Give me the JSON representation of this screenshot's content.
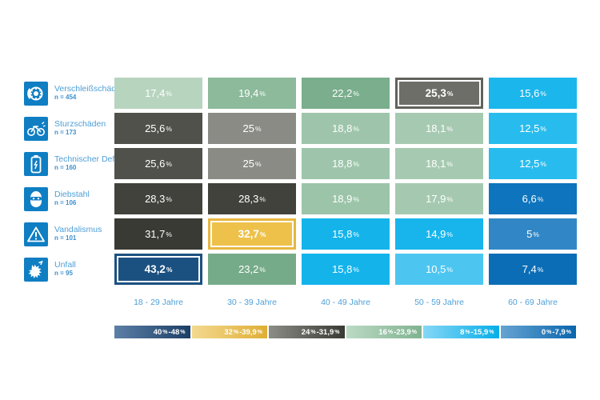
{
  "chart_data": {
    "type": "heatmap",
    "unit": "%",
    "columns": [
      "18 - 29 Jahre",
      "30 - 39 Jahre",
      "40 - 49 Jahre",
      "50 - 59 Jahre",
      "60 - 69 Jahre"
    ],
    "rows": [
      {
        "label": "Verschleißschäden",
        "n_label": "n = 454",
        "n": 454,
        "icon": "brake-pad",
        "cells": [
          {
            "v": "17,4",
            "bg": "#b7d4bf"
          },
          {
            "v": "19,4",
            "bg": "#8cba9b"
          },
          {
            "v": "22,2",
            "bg": "#7aae8c"
          },
          {
            "v": "25,3",
            "bg": "#6e6e68",
            "hl": true,
            "frame": "#62625c"
          },
          {
            "v": "15,6",
            "bg": "#1ab6ec"
          }
        ]
      },
      {
        "label": "Sturzschäden",
        "n_label": "n = 173",
        "n": 173,
        "icon": "bicycle-crash",
        "cells": [
          {
            "v": "25,6",
            "bg": "#51514b"
          },
          {
            "v": "25",
            "bg": "#8b8b86"
          },
          {
            "v": "18,8",
            "bg": "#9ec5ab"
          },
          {
            "v": "18,1",
            "bg": "#a6cab1"
          },
          {
            "v": "12,5",
            "bg": "#28bcee"
          }
        ]
      },
      {
        "label": "Technischer Defekt",
        "n_label": "n = 160",
        "n": 160,
        "icon": "battery",
        "cells": [
          {
            "v": "25,6",
            "bg": "#51514b"
          },
          {
            "v": "25",
            "bg": "#8b8b86"
          },
          {
            "v": "18,8",
            "bg": "#9ec5ab"
          },
          {
            "v": "18,1",
            "bg": "#a6cab1"
          },
          {
            "v": "12,5",
            "bg": "#28bcee"
          }
        ]
      },
      {
        "label": "Diebstahl",
        "n_label": "n = 106",
        "n": 106,
        "icon": "thief-mask",
        "cells": [
          {
            "v": "28,3",
            "bg": "#42423c"
          },
          {
            "v": "28,3",
            "bg": "#42423c"
          },
          {
            "v": "18,9",
            "bg": "#9cc4a9"
          },
          {
            "v": "17,9",
            "bg": "#a5c9b0"
          },
          {
            "v": "6,6",
            "bg": "#0d74bd"
          }
        ]
      },
      {
        "label": "Vandalismus",
        "n_label": "n = 101",
        "n": 101,
        "icon": "warning-triangle",
        "cells": [
          {
            "v": "31,7",
            "bg": "#3a3a34"
          },
          {
            "v": "32,7",
            "bg": "#eec14b",
            "hl": true,
            "frame": "#e6b73e"
          },
          {
            "v": "15,8",
            "bg": "#14b4eb"
          },
          {
            "v": "14,9",
            "bg": "#17b5ec"
          },
          {
            "v": "5",
            "bg": "#3187c5"
          }
        ]
      },
      {
        "label": "Unfall",
        "n_label": "n = 95",
        "n": 95,
        "icon": "collision",
        "cells": [
          {
            "v": "43,2",
            "bg": "#1b5181",
            "hl": true,
            "frame": "#1b5181"
          },
          {
            "v": "23,2",
            "bg": "#76ab89"
          },
          {
            "v": "15,8",
            "bg": "#14b4eb"
          },
          {
            "v": "10,5",
            "bg": "#4cc6f1"
          },
          {
            "v": "7,4",
            "bg": "#0b6db6"
          }
        ]
      }
    ],
    "legend": [
      {
        "lo": "40",
        "hi": "48",
        "from": "#5c7fa6",
        "to": "#1b3f66"
      },
      {
        "lo": "32",
        "hi": "39,9",
        "from": "#f3d98f",
        "to": "#dfaf35"
      },
      {
        "lo": "24",
        "hi": "31,9",
        "from": "#8d8d88",
        "to": "#3a3a34"
      },
      {
        "lo": "16",
        "hi": "23,9",
        "from": "#bcdac5",
        "to": "#7fb390"
      },
      {
        "lo": "8",
        "hi": "15,9",
        "from": "#85d7f6",
        "to": "#07aee8"
      },
      {
        "lo": "0",
        "hi": "7,9",
        "from": "#66a3d2",
        "to": "#0a66ad"
      }
    ],
    "colors": {
      "icon_bg": "#0f7ec3",
      "label_text": "#4d9fd8",
      "highlight_inner_border": "#ffffff"
    }
  }
}
